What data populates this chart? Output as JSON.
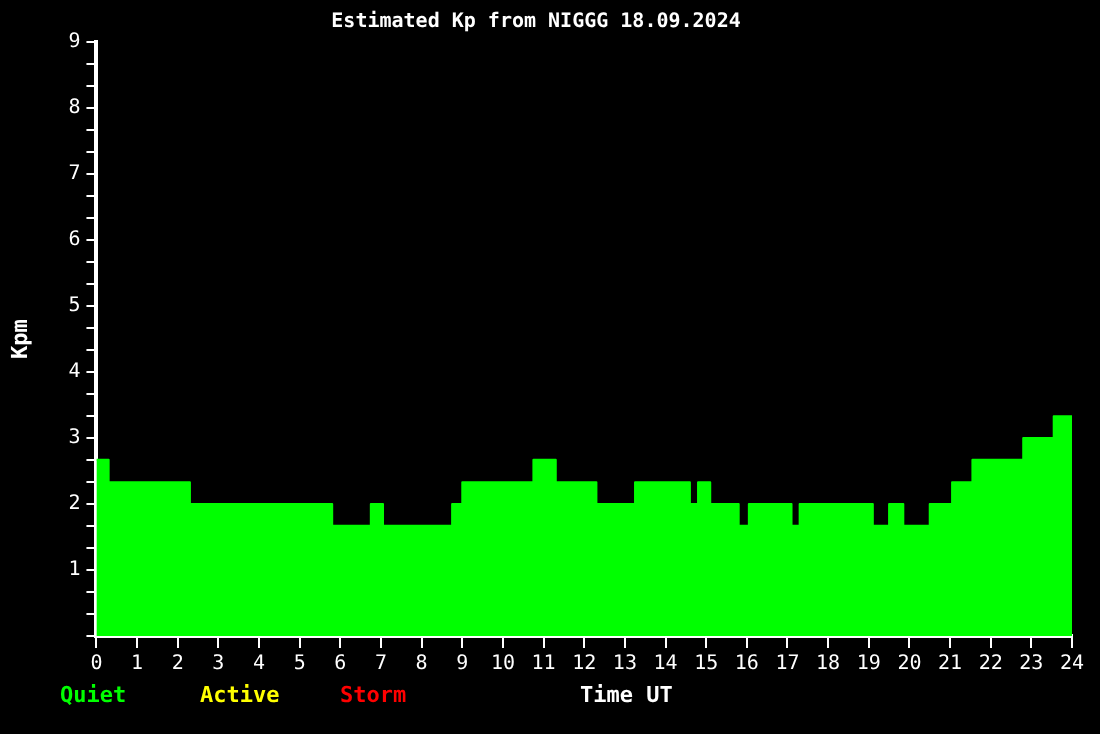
{
  "chart_data": {
    "type": "area",
    "title": "Estimated Kp from NIGGG 18.09.2024",
    "xlabel": "Time UT",
    "ylabel": "Kpm",
    "xlim": [
      0,
      24
    ],
    "xticks": [
      0,
      1,
      2,
      3,
      4,
      5,
      6,
      7,
      8,
      9,
      10,
      11,
      12,
      13,
      14,
      15,
      16,
      17,
      18,
      19,
      20,
      21,
      22,
      23,
      24
    ],
    "ylim": [
      0,
      9
    ],
    "yticks": [
      {
        "value": 0,
        "label": null
      },
      {
        "value": 0.33,
        "label": null
      },
      {
        "value": 0.67,
        "label": null
      },
      1,
      {
        "value": 1.33,
        "label": null
      },
      {
        "value": 1.67,
        "label": null
      },
      2,
      {
        "value": 2.33,
        "label": null
      },
      {
        "value": 2.67,
        "label": null
      },
      3,
      {
        "value": 3.33,
        "label": null
      },
      {
        "value": 3.67,
        "label": null
      },
      4,
      {
        "value": 4.33,
        "label": null
      },
      {
        "value": 4.67,
        "label": null
      },
      5,
      {
        "value": 5.33,
        "label": null
      },
      {
        "value": 5.67,
        "label": null
      },
      6,
      {
        "value": 6.33,
        "label": null
      },
      {
        "value": 6.67,
        "label": null
      },
      7,
      {
        "value": 7.33,
        "label": null
      },
      {
        "value": 7.67,
        "label": null
      },
      8,
      {
        "value": 8.33,
        "label": null
      },
      {
        "value": 8.67,
        "label": null
      },
      9
    ],
    "grid": false,
    "series": [
      {
        "name": "Quiet",
        "color": "#00ff00",
        "x": [
          0,
          0.3,
          0.3,
          2.3,
          2.3,
          5.8,
          5.8,
          6.75,
          6.75,
          7.05,
          7.05,
          8.75,
          8.75,
          9.0,
          9.0,
          10.75,
          10.75,
          11.3,
          11.3,
          12.3,
          12.3,
          13.25,
          13.25,
          14.6,
          14.6,
          14.8,
          14.8,
          15.1,
          15.1,
          15.8,
          15.8,
          16.05,
          16.05,
          17.1,
          17.1,
          17.3,
          17.3,
          19.1,
          19.1,
          19.5,
          19.5,
          19.85,
          19.85,
          20.5,
          20.5,
          21.05,
          21.05,
          21.55,
          21.55,
          22.8,
          22.8,
          23.55,
          23.55,
          24
        ],
        "values": [
          2.67,
          2.67,
          2.33,
          2.33,
          2.0,
          2.0,
          1.67,
          1.67,
          2.0,
          2.0,
          1.67,
          1.67,
          2.0,
          2.0,
          2.33,
          2.33,
          2.67,
          2.67,
          2.33,
          2.33,
          2.0,
          2.0,
          2.33,
          2.33,
          2.0,
          2.0,
          2.33,
          2.33,
          2.0,
          2.0,
          1.67,
          1.67,
          2.0,
          2.0,
          1.67,
          1.67,
          2.0,
          2.0,
          1.67,
          1.67,
          2.0,
          2.0,
          1.67,
          1.67,
          2.0,
          2.0,
          2.33,
          2.33,
          2.67,
          2.67,
          3.0,
          3.0,
          3.33,
          3.33
        ]
      },
      {
        "name": "Active",
        "color": "#ffff00"
      },
      {
        "name": "Storm",
        "color": "#ff0000"
      }
    ]
  }
}
